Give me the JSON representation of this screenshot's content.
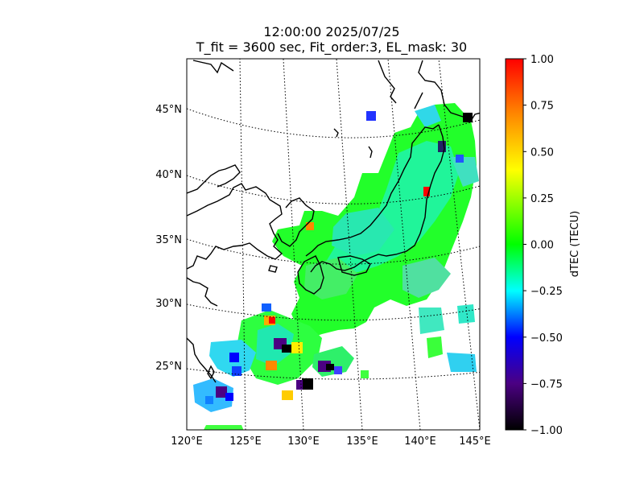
{
  "title": {
    "line1": "12:00:00 2025/07/25",
    "line2": "T_fit = 3600 sec, Fit_order:3, EL_mask: 30"
  },
  "map": {
    "lon_labels": [
      "120°E",
      "125°E",
      "130°E",
      "135°E",
      "140°E",
      "145°E"
    ],
    "lat_labels": [
      "45°N",
      "40°N",
      "35°N",
      "30°N",
      "25°N"
    ]
  },
  "colorbar": {
    "label": "dTEC (TECU)",
    "ticks": [
      "1.00",
      "0.75",
      "0.50",
      "0.25",
      "0.00",
      "−0.25",
      "−0.50",
      "−0.75",
      "−1.00"
    ],
    "min": -1.0,
    "max": 1.0,
    "colormap": [
      "#000000",
      "#4b0082",
      "#0000ff",
      "#00ffff",
      "#00ff00",
      "#ffff00",
      "#ff8800",
      "#ff0000"
    ]
  }
}
